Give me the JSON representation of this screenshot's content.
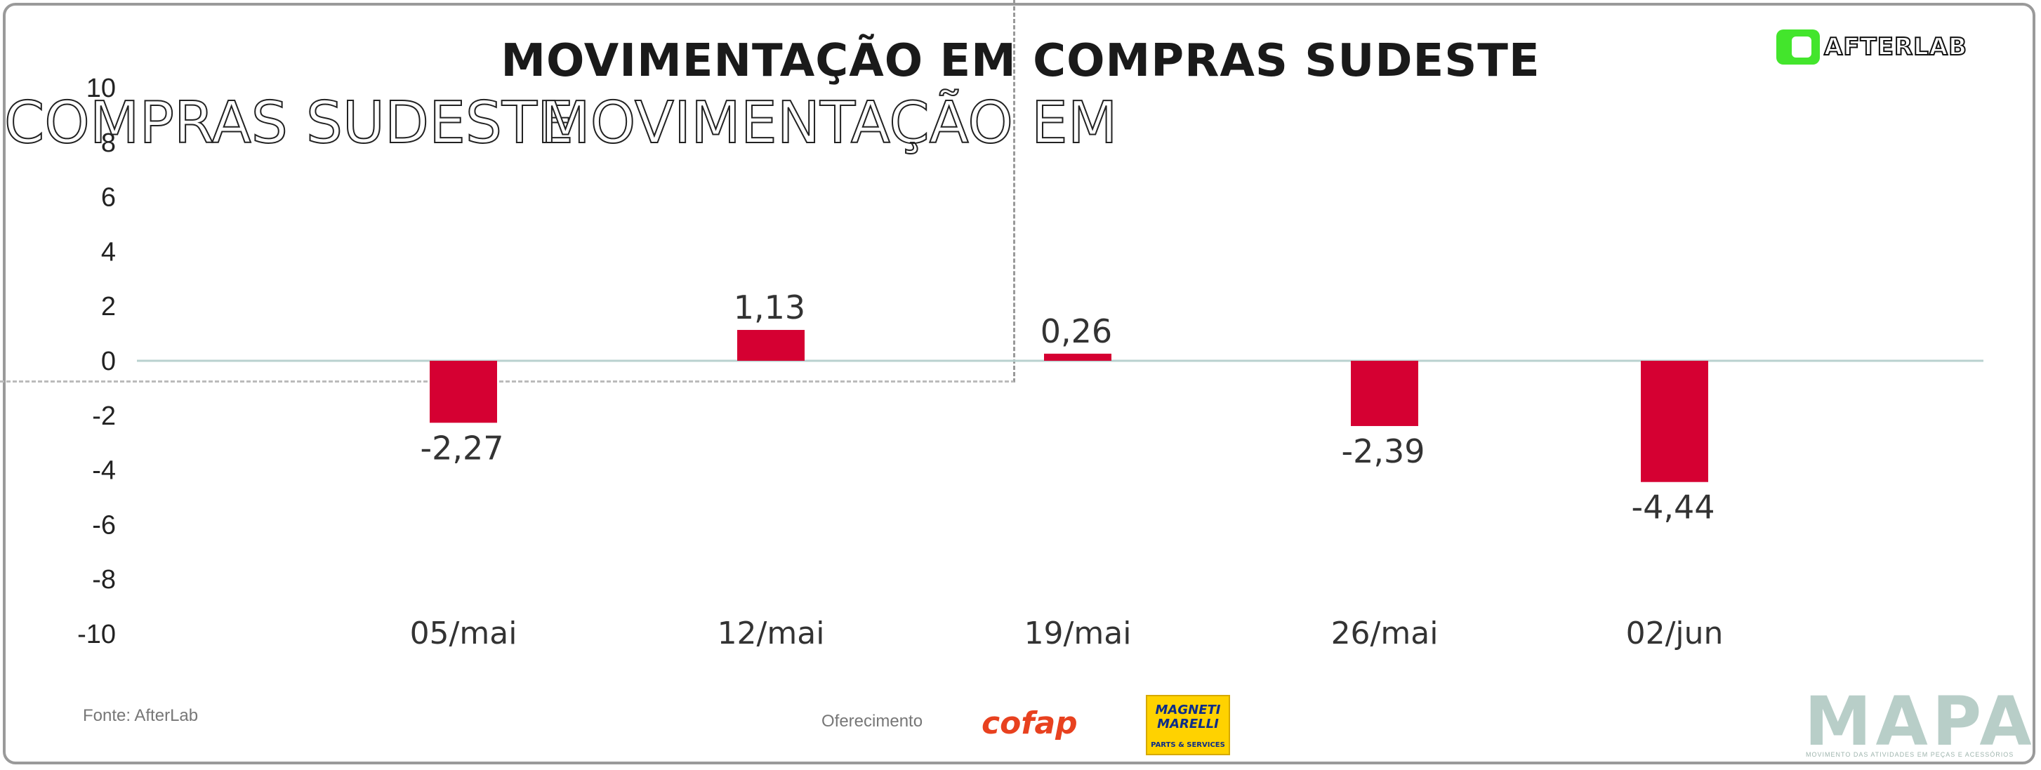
{
  "chart_data": {
    "type": "bar",
    "title": "MOVIMENTAÇÃO EM COMPRAS SUDESTE",
    "categories": [
      "05/mai",
      "12/mai",
      "19/mai",
      "26/mai",
      "02/jun"
    ],
    "values": [
      -2.27,
      1.13,
      0.26,
      -2.39,
      -4.44
    ],
    "data_labels": [
      "-2,27",
      "1,13",
      "0,26",
      "-2,39",
      "-4,44"
    ],
    "ylim": [
      -10,
      10
    ],
    "yticks": [
      10,
      8,
      6,
      4,
      2,
      0,
      -2,
      -4,
      -6,
      -8,
      -10
    ],
    "bar_color": "#d50032",
    "grid": false,
    "baseline_color": "#b9d1cf"
  },
  "ghost_text": {
    "left": "COMPRAS SUDESTE",
    "right": "MOVIMENTAÇÃO EM"
  },
  "branding": {
    "publisher": "AFTERLAB",
    "source": "Fonte: AfterLab",
    "sponsor_label": "Oferecimento",
    "sponsor1": "cofap",
    "sponsor2_line1": "MAGNETI MARELLI",
    "sponsor2_line2": "PARTS & SERVICES",
    "footer_brand": "MAPA",
    "footer_tagline": "MOVIMENTO DAS ATIVIDADES EM PEÇAS E ACESSÓRIOS"
  }
}
